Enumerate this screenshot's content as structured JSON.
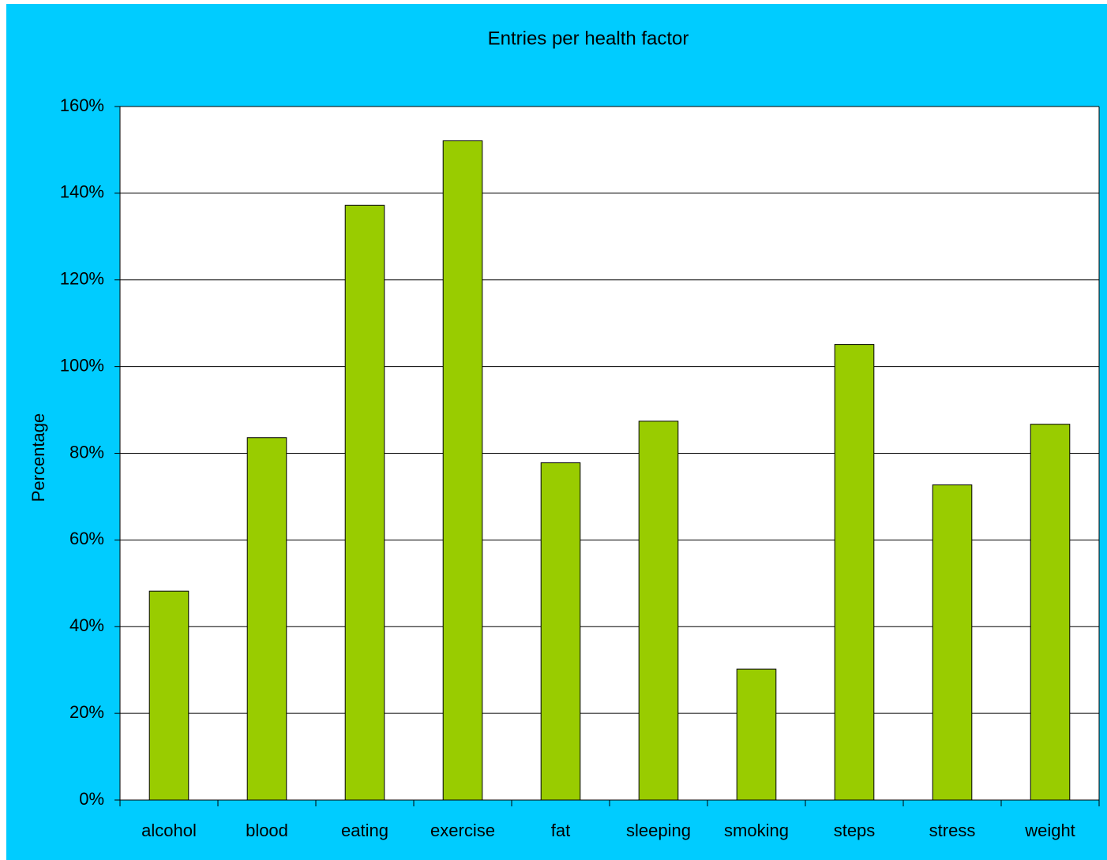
{
  "chart_data": {
    "type": "bar",
    "title": "Entries per health factor",
    "y_label": "Percentage",
    "categories": [
      "alcohol",
      "blood",
      "eating",
      "exercise",
      "fat",
      "sleeping",
      "smoking",
      "steps",
      "stress",
      "weight"
    ],
    "values": [
      48.2,
      83.6,
      137.2,
      152.1,
      77.8,
      87.4,
      30.2,
      105.1,
      72.7,
      86.7
    ],
    "color": "#99cc00",
    "ylim": [
      0,
      160
    ],
    "yticks": [
      {
        "value": 0,
        "label": "0%"
      },
      {
        "value": 20,
        "label": "20%"
      },
      {
        "value": 40,
        "label": "40%"
      },
      {
        "value": 60,
        "label": "60%"
      },
      {
        "value": 80,
        "label": "80%"
      },
      {
        "value": 100,
        "label": "100%"
      },
      {
        "value": 120,
        "label": "120%"
      },
      {
        "value": 140,
        "label": "140%"
      },
      {
        "value": 160,
        "label": "160%"
      }
    ],
    "grid": true
  }
}
